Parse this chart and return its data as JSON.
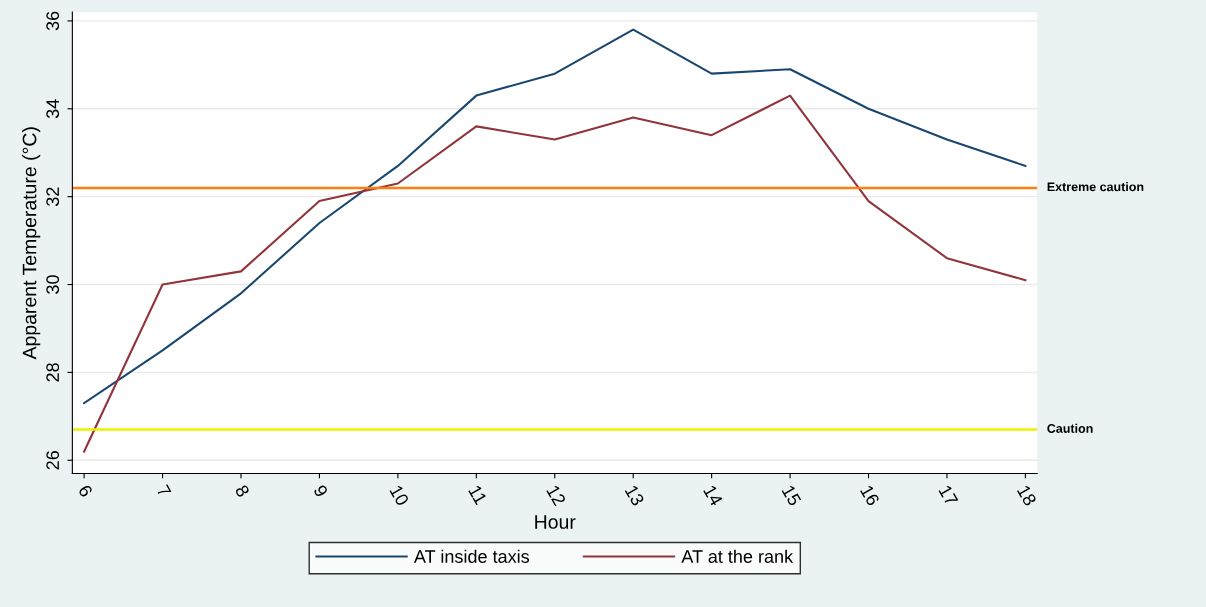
{
  "chart_data": {
    "type": "line",
    "xlabel": "Hour",
    "ylabel": "Apparent Temperature (°C)",
    "x": [
      6,
      7,
      8,
      9,
      10,
      11,
      12,
      13,
      14,
      15,
      16,
      17,
      18
    ],
    "series": [
      {
        "name": "AT inside taxis",
        "color": "#1a476f",
        "values": [
          27.3,
          28.5,
          29.8,
          31.4,
          32.7,
          34.3,
          34.8,
          35.8,
          34.8,
          34.9,
          34.0,
          33.3,
          32.7
        ]
      },
      {
        "name": "AT at the rank",
        "color": "#90353b",
        "values": [
          26.2,
          30.0,
          30.3,
          31.9,
          32.3,
          33.6,
          33.3,
          33.8,
          33.4,
          34.3,
          31.9,
          30.6,
          30.1
        ]
      }
    ],
    "xlim": [
      5.85,
      18.15
    ],
    "xticks": [
      6,
      7,
      8,
      9,
      10,
      11,
      12,
      13,
      14,
      15,
      16,
      17,
      18
    ],
    "ylim": [
      25.7,
      36.2
    ],
    "yticks": [
      26,
      28,
      30,
      32,
      34,
      36
    ],
    "ref_lines": [
      {
        "axis": "y",
        "value": 32.2,
        "label": "Extreme caution",
        "color": "#ff7f0e"
      },
      {
        "axis": "y",
        "value": 26.7,
        "label": "Caution",
        "color": "#f0f000"
      }
    ],
    "grid": "y",
    "legend": "bottom",
    "marker": "none",
    "line_style": "solid"
  }
}
